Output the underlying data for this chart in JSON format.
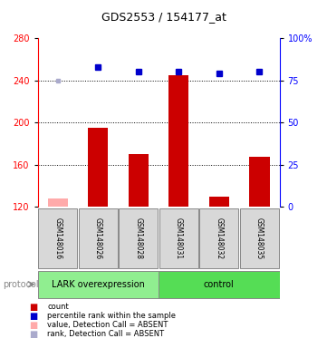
{
  "title": "GDS2553 / 154177_at",
  "samples": [
    "GSM148016",
    "GSM148026",
    "GSM148028",
    "GSM148031",
    "GSM148032",
    "GSM148035"
  ],
  "bar_values": [
    null,
    195,
    170,
    245,
    130,
    168
  ],
  "bar_absent_values": [
    128,
    null,
    null,
    null,
    null,
    null
  ],
  "rank_values": [
    null,
    83,
    80,
    80,
    79,
    80
  ],
  "rank_absent_values": [
    75,
    null,
    null,
    null,
    null,
    null
  ],
  "bar_color": "#cc0000",
  "bar_absent_color": "#ffaaaa",
  "rank_color": "#0000cc",
  "rank_absent_color": "#aaaacc",
  "ylim_left": [
    120,
    280
  ],
  "ylim_right": [
    0,
    100
  ],
  "yticks_left": [
    120,
    160,
    200,
    240,
    280
  ],
  "yticks_right": [
    0,
    25,
    50,
    75,
    100
  ],
  "groups": [
    {
      "label": "LARK overexpression",
      "color": "#90ee90",
      "start": 0,
      "end": 3
    },
    {
      "label": "control",
      "color": "#55dd55",
      "start": 3,
      "end": 6
    }
  ],
  "background_color": "#d8d8d8",
  "dotted_line_values": [
    160,
    200,
    240
  ],
  "bar_width": 0.5,
  "legend": [
    {
      "label": "count",
      "color": "#cc0000"
    },
    {
      "label": "percentile rank within the sample",
      "color": "#0000cc"
    },
    {
      "label": "value, Detection Call = ABSENT",
      "color": "#ffaaaa"
    },
    {
      "label": "rank, Detection Call = ABSENT",
      "color": "#aaaacc"
    }
  ]
}
